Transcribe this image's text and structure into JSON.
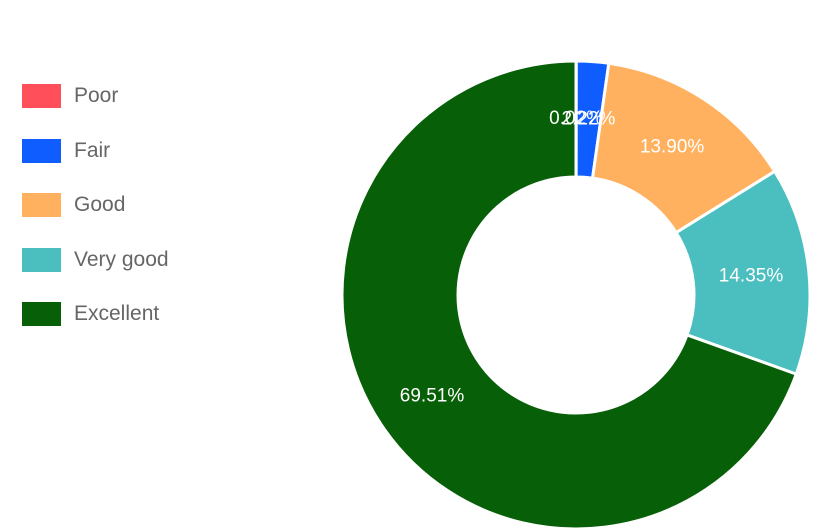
{
  "chart_data": {
    "type": "pie",
    "categories": [
      "Poor",
      "Fair",
      "Good",
      "Very good",
      "Excellent"
    ],
    "values": [
      0.02,
      2.22,
      13.9,
      14.35,
      69.51
    ],
    "value_labels": [
      "0.02%",
      "2.22%",
      "13.90%",
      "14.35%",
      "69.51%"
    ],
    "colors": [
      "#ff4f5b",
      "#0f5cff",
      "#ffb15f",
      "#4bbfbf",
      "#075f07"
    ],
    "donut": true,
    "legend_position": "left"
  }
}
